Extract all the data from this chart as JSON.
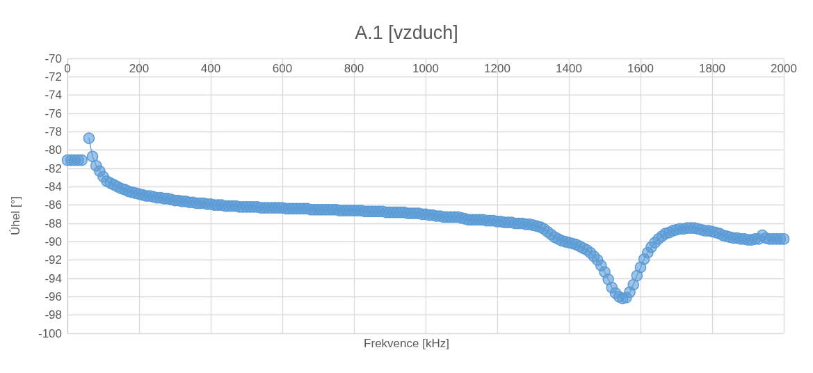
{
  "chart_data": {
    "type": "line",
    "title": "A.1 [vzduch]",
    "xlabel": "Frekvence [kHz]",
    "ylabel": "Úhel [°]",
    "x": [
      0,
      10,
      20,
      30,
      40,
      50,
      60,
      70,
      80,
      90,
      100,
      110,
      120,
      130,
      140,
      150,
      160,
      170,
      180,
      190,
      200,
      210,
      220,
      230,
      240,
      250,
      260,
      270,
      280,
      290,
      300,
      310,
      320,
      330,
      340,
      350,
      360,
      370,
      380,
      390,
      400,
      410,
      420,
      430,
      440,
      450,
      460,
      470,
      480,
      490,
      500,
      510,
      520,
      530,
      540,
      550,
      560,
      570,
      580,
      590,
      600,
      610,
      620,
      630,
      640,
      650,
      660,
      670,
      680,
      690,
      700,
      710,
      720,
      730,
      740,
      750,
      760,
      770,
      780,
      790,
      800,
      810,
      820,
      830,
      840,
      850,
      860,
      870,
      880,
      890,
      900,
      910,
      920,
      930,
      940,
      950,
      960,
      970,
      980,
      990,
      1000,
      1010,
      1020,
      1030,
      1040,
      1050,
      1060,
      1070,
      1080,
      1090,
      1100,
      1110,
      1120,
      1130,
      1140,
      1150,
      1160,
      1170,
      1180,
      1190,
      1200,
      1210,
      1220,
      1230,
      1240,
      1250,
      1260,
      1270,
      1280,
      1290,
      1300,
      1310,
      1320,
      1330,
      1340,
      1350,
      1360,
      1370,
      1380,
      1390,
      1400,
      1410,
      1420,
      1430,
      1440,
      1450,
      1460,
      1470,
      1480,
      1490,
      1500,
      1510,
      1520,
      1530,
      1540,
      1550,
      1560,
      1570,
      1580,
      1590,
      1600,
      1610,
      1620,
      1630,
      1640,
      1650,
      1660,
      1670,
      1680,
      1690,
      1700,
      1710,
      1720,
      1730,
      1740,
      1750,
      1760,
      1770,
      1780,
      1790,
      1800,
      1810,
      1820,
      1830,
      1840,
      1850,
      1860,
      1870,
      1880,
      1890,
      1900,
      1910,
      1920,
      1930,
      1940,
      1950,
      1960,
      1970,
      1980,
      1990,
      2000
    ],
    "series": [
      {
        "color": "#5b9bd5",
        "values": [
          -81.1,
          -81.1,
          -81.1,
          -81.1,
          -81.1,
          null,
          -78.7,
          -80.7,
          -81.7,
          -82.3,
          -82.9,
          -83.4,
          -83.6,
          -83.8,
          -84.0,
          -84.2,
          -84.3,
          -84.5,
          -84.6,
          -84.7,
          -84.8,
          -84.9,
          -85.0,
          -85.0,
          -85.1,
          -85.2,
          -85.2,
          -85.3,
          -85.3,
          -85.4,
          -85.5,
          -85.5,
          -85.6,
          -85.6,
          -85.7,
          -85.7,
          -85.8,
          -85.8,
          -85.8,
          -85.9,
          -85.9,
          -86.0,
          -86.0,
          -86.0,
          -86.1,
          -86.1,
          -86.1,
          -86.1,
          -86.2,
          -86.2,
          -86.2,
          -86.2,
          -86.2,
          -86.2,
          -86.3,
          -86.3,
          -86.3,
          -86.3,
          -86.3,
          -86.3,
          -86.3,
          -86.4,
          -86.4,
          -86.4,
          -86.4,
          -86.4,
          -86.4,
          -86.4,
          -86.5,
          -86.5,
          -86.5,
          -86.5,
          -86.5,
          -86.5,
          -86.5,
          -86.5,
          -86.6,
          -86.6,
          -86.6,
          -86.6,
          -86.6,
          -86.6,
          -86.6,
          -86.7,
          -86.7,
          -86.7,
          -86.7,
          -86.7,
          -86.7,
          -86.8,
          -86.8,
          -86.8,
          -86.8,
          -86.8,
          -86.8,
          -86.9,
          -86.9,
          -86.9,
          -86.9,
          -87.0,
          -87.0,
          -87.1,
          -87.1,
          -87.2,
          -87.2,
          -87.3,
          -87.3,
          -87.3,
          -87.3,
          -87.3,
          -87.4,
          -87.5,
          -87.6,
          -87.6,
          -87.6,
          -87.6,
          -87.6,
          -87.7,
          -87.7,
          -87.7,
          -87.8,
          -87.8,
          -87.9,
          -87.9,
          -87.9,
          -88.0,
          -88.0,
          -88.0,
          -88.1,
          -88.1,
          -88.2,
          -88.3,
          -88.4,
          -88.6,
          -88.9,
          -89.2,
          -89.5,
          -89.7,
          -89.9,
          -90.0,
          -90.1,
          -90.2,
          -90.3,
          -90.5,
          -90.7,
          -90.9,
          -91.2,
          -91.6,
          -92.0,
          -92.6,
          -93.3,
          -94.1,
          -95.0,
          -95.6,
          -96.0,
          -96.2,
          -96.1,
          -95.5,
          -94.7,
          -93.7,
          -92.8,
          -91.9,
          -91.2,
          -90.6,
          -90.1,
          -89.7,
          -89.4,
          -89.1,
          -89.0,
          -88.8,
          -88.7,
          -88.6,
          -88.6,
          -88.5,
          -88.5,
          -88.5,
          -88.6,
          -88.7,
          -88.8,
          -88.8,
          -88.9,
          -89.0,
          -89.1,
          -89.3,
          -89.4,
          -89.5,
          -89.6,
          -89.6,
          -89.7,
          -89.7,
          -89.8,
          -89.8,
          -89.7,
          -89.7,
          -89.3,
          -89.6,
          -89.7,
          -89.7,
          -89.7,
          -89.7,
          -89.7
        ]
      }
    ],
    "xlim": [
      0,
      2000
    ],
    "xticks": [
      0,
      200,
      400,
      600,
      800,
      1000,
      1200,
      1400,
      1600,
      1800,
      2000
    ],
    "ylim": [
      -100,
      -70
    ],
    "yticks": [
      -100,
      -98,
      -96,
      -94,
      -92,
      -90,
      -88,
      -86,
      -84,
      -82,
      -80,
      -78,
      -76,
      -74,
      -72,
      -70
    ],
    "grid": true,
    "marker": "circle",
    "line_style": "dotted"
  }
}
